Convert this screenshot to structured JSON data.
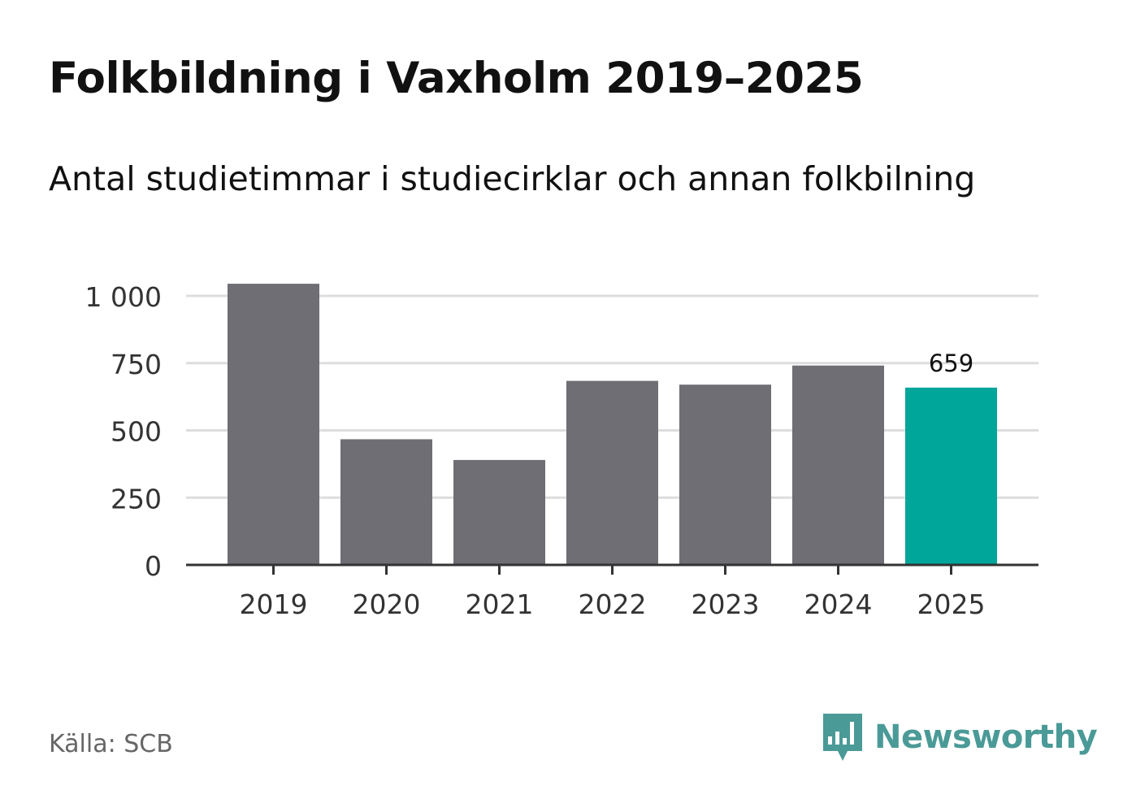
{
  "header": {
    "title": "Folkbildning i Vaxholm 2019–2025",
    "subtitle": "Antal studietimmar i studiecirklar och annan folkbilning"
  },
  "footer": {
    "source": "Källa: SCB",
    "brand": "Newsworthy",
    "brand_icon": "bar-chart-speech-bubble-icon"
  },
  "colors": {
    "bar": "#6f6e74",
    "highlight": "#00a69a",
    "grid": "#dddddd",
    "axis": "#333333",
    "brand": "#4a9a97"
  },
  "chart_data": {
    "type": "bar",
    "title": "Folkbildning i Vaxholm 2019–2025",
    "subtitle": "Antal studietimmar i studiecirklar och annan folkbilning",
    "xlabel": "",
    "ylabel": "",
    "categories": [
      "2019",
      "2020",
      "2021",
      "2022",
      "2023",
      "2024",
      "2025"
    ],
    "values": [
      1045,
      467,
      390,
      684,
      670,
      741,
      659
    ],
    "highlight_index": 6,
    "data_labels": [
      {
        "index": 6,
        "text": "659"
      }
    ],
    "ylim": [
      0,
      1000
    ],
    "yticks": [
      0,
      250,
      500,
      750,
      1000
    ],
    "ytick_labels": [
      "0",
      "250",
      "500",
      "750",
      "1 000"
    ],
    "grid": true,
    "legend": "none"
  }
}
